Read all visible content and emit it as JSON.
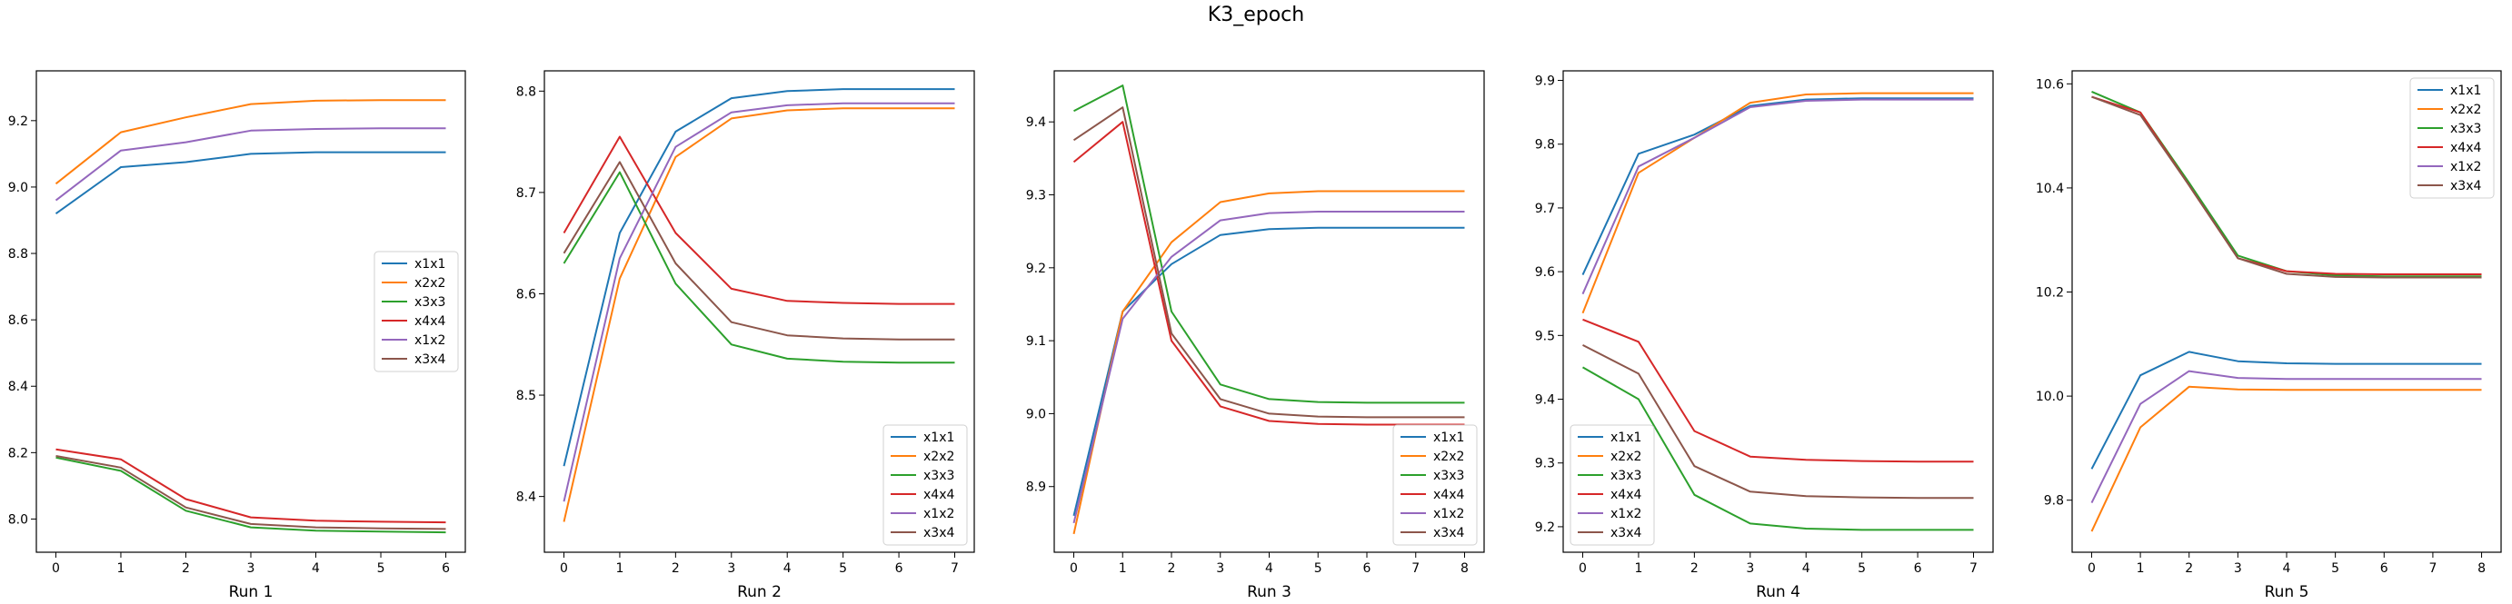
{
  "figure_title": "K3_epoch",
  "series_colors": {
    "x1x1": "#1f77b4",
    "x2x2": "#ff7f0e",
    "x3x3": "#2ca02c",
    "x4x4": "#d62728",
    "x1x2": "#9467bd",
    "x3x4": "#8c564b"
  },
  "chart_data": [
    {
      "type": "line",
      "xlabel": "Run 1",
      "ylabel": "",
      "x": [
        0,
        1,
        2,
        3,
        4,
        5,
        6
      ],
      "xlim": [
        -0.3,
        6.3
      ],
      "ylim": [
        7.9,
        9.35
      ],
      "yticks": [
        "8.0",
        "8.2",
        "8.4",
        "8.6",
        "8.8",
        "9.0",
        "9.2"
      ],
      "legend_position": "center-right",
      "grid": false,
      "series": [
        {
          "name": "x1x1",
          "values": [
            8.92,
            9.06,
            9.075,
            9.1,
            9.105,
            9.105,
            9.105
          ]
        },
        {
          "name": "x2x2",
          "values": [
            9.01,
            9.165,
            9.21,
            9.25,
            9.26,
            9.262,
            9.262
          ]
        },
        {
          "name": "x3x3",
          "values": [
            8.185,
            8.145,
            8.025,
            7.975,
            7.965,
            7.962,
            7.96
          ]
        },
        {
          "name": "x4x4",
          "values": [
            8.21,
            8.18,
            8.06,
            8.005,
            7.995,
            7.992,
            7.99
          ]
        },
        {
          "name": "x1x2",
          "values": [
            8.96,
            9.11,
            9.135,
            9.17,
            9.175,
            9.177,
            9.177
          ]
        },
        {
          "name": "x3x4",
          "values": [
            8.19,
            8.155,
            8.035,
            7.985,
            7.975,
            7.972,
            7.97
          ]
        }
      ]
    },
    {
      "type": "line",
      "xlabel": "Run 2",
      "ylabel": "",
      "x": [
        0,
        1,
        2,
        3,
        4,
        5,
        6,
        7
      ],
      "xlim": [
        -0.35,
        7.35
      ],
      "ylim": [
        8.345,
        8.82
      ],
      "yticks": [
        "8.4",
        "8.5",
        "8.6",
        "8.7",
        "8.8"
      ],
      "legend_position": "bottom-right",
      "grid": false,
      "series": [
        {
          "name": "x1x1",
          "values": [
            8.43,
            8.66,
            8.76,
            8.793,
            8.8,
            8.802,
            8.802,
            8.802
          ]
        },
        {
          "name": "x2x2",
          "values": [
            8.375,
            8.615,
            8.735,
            8.773,
            8.781,
            8.783,
            8.783,
            8.783
          ]
        },
        {
          "name": "x3x3",
          "values": [
            8.63,
            8.72,
            8.61,
            8.55,
            8.536,
            8.533,
            8.532,
            8.532
          ]
        },
        {
          "name": "x4x4",
          "values": [
            8.66,
            8.755,
            8.66,
            8.605,
            8.593,
            8.591,
            8.59,
            8.59
          ]
        },
        {
          "name": "x1x2",
          "values": [
            8.395,
            8.635,
            8.745,
            8.779,
            8.786,
            8.788,
            8.788,
            8.788
          ]
        },
        {
          "name": "x3x4",
          "values": [
            8.64,
            8.73,
            8.63,
            8.572,
            8.559,
            8.556,
            8.555,
            8.555
          ]
        }
      ]
    },
    {
      "type": "line",
      "xlabel": "Run 3",
      "ylabel": "",
      "x": [
        0,
        1,
        2,
        3,
        4,
        5,
        6,
        7,
        8
      ],
      "xlim": [
        -0.4,
        8.4
      ],
      "ylim": [
        8.81,
        9.47
      ],
      "yticks": [
        "8.9",
        "9.0",
        "9.1",
        "9.2",
        "9.3",
        "9.4"
      ],
      "legend_position": "bottom-right",
      "grid": false,
      "series": [
        {
          "name": "x1x1",
          "values": [
            8.86,
            9.14,
            9.205,
            9.245,
            9.253,
            9.255,
            9.255,
            9.255,
            9.255
          ]
        },
        {
          "name": "x2x2",
          "values": [
            8.835,
            9.14,
            9.235,
            9.29,
            9.302,
            9.305,
            9.305,
            9.305,
            9.305
          ]
        },
        {
          "name": "x3x3",
          "values": [
            9.415,
            9.45,
            9.14,
            9.04,
            9.02,
            9.016,
            9.015,
            9.015,
            9.015
          ]
        },
        {
          "name": "x4x4",
          "values": [
            9.345,
            9.4,
            9.1,
            9.01,
            8.99,
            8.986,
            8.985,
            8.985,
            8.985
          ]
        },
        {
          "name": "x1x2",
          "values": [
            8.85,
            9.13,
            9.215,
            9.265,
            9.275,
            9.277,
            9.277,
            9.277,
            9.277
          ]
        },
        {
          "name": "x3x4",
          "values": [
            9.375,
            9.42,
            9.11,
            9.02,
            9.0,
            8.996,
            8.995,
            8.995,
            8.995
          ]
        }
      ]
    },
    {
      "type": "line",
      "xlabel": "Run 4",
      "ylabel": "",
      "x": [
        0,
        1,
        2,
        3,
        4,
        5,
        6,
        7
      ],
      "xlim": [
        -0.35,
        7.35
      ],
      "ylim": [
        9.16,
        9.915
      ],
      "yticks": [
        "9.2",
        "9.3",
        "9.4",
        "9.5",
        "9.6",
        "9.7",
        "9.8",
        "9.9"
      ],
      "legend_position": "bottom-left",
      "grid": false,
      "series": [
        {
          "name": "x1x1",
          "values": [
            9.595,
            9.785,
            9.815,
            9.86,
            9.87,
            9.872,
            9.872,
            9.872
          ]
        },
        {
          "name": "x2x2",
          "values": [
            9.535,
            9.755,
            9.81,
            9.865,
            9.878,
            9.88,
            9.88,
            9.88
          ]
        },
        {
          "name": "x3x3",
          "values": [
            9.45,
            9.4,
            9.25,
            9.205,
            9.197,
            9.195,
            9.195,
            9.195
          ]
        },
        {
          "name": "x4x4",
          "values": [
            9.525,
            9.49,
            9.35,
            9.31,
            9.305,
            9.303,
            9.302,
            9.302
          ]
        },
        {
          "name": "x1x2",
          "values": [
            9.565,
            9.765,
            9.81,
            9.858,
            9.868,
            9.87,
            9.87,
            9.87
          ]
        },
        {
          "name": "x3x4",
          "values": [
            9.485,
            9.44,
            9.295,
            9.255,
            9.248,
            9.246,
            9.245,
            9.245
          ]
        }
      ]
    },
    {
      "type": "line",
      "xlabel": "Run 5",
      "ylabel": "",
      "x": [
        0,
        1,
        2,
        3,
        4,
        5,
        6,
        7,
        8
      ],
      "xlim": [
        -0.4,
        8.4
      ],
      "ylim": [
        9.7,
        10.625
      ],
      "yticks": [
        "9.8",
        "10.0",
        "10.2",
        "10.4",
        "10.6"
      ],
      "legend_position": "top-right",
      "grid": false,
      "series": [
        {
          "name": "x1x1",
          "values": [
            9.86,
            10.04,
            10.085,
            10.067,
            10.063,
            10.062,
            10.062,
            10.062,
            10.062
          ]
        },
        {
          "name": "x2x2",
          "values": [
            9.74,
            9.94,
            10.018,
            10.013,
            10.012,
            10.012,
            10.012,
            10.012,
            10.012
          ]
        },
        {
          "name": "x3x3",
          "values": [
            10.585,
            10.545,
            10.41,
            10.27,
            10.24,
            10.232,
            10.23,
            10.23,
            10.23
          ]
        },
        {
          "name": "x4x4",
          "values": [
            10.575,
            10.545,
            10.405,
            10.265,
            10.24,
            10.235,
            10.234,
            10.234,
            10.234
          ]
        },
        {
          "name": "x1x2",
          "values": [
            9.795,
            9.985,
            10.048,
            10.035,
            10.033,
            10.033,
            10.033,
            10.033,
            10.033
          ]
        },
        {
          "name": "x3x4",
          "values": [
            10.575,
            10.54,
            10.405,
            10.265,
            10.235,
            10.229,
            10.228,
            10.228,
            10.228
          ]
        }
      ]
    }
  ]
}
